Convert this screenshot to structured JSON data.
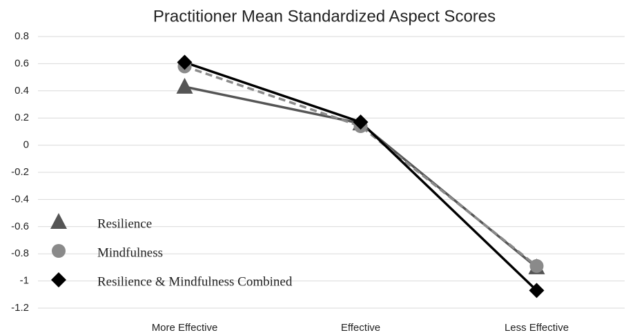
{
  "chart_data": {
    "type": "line",
    "title": "Practitioner Mean Standardized Aspect Scores",
    "categories": [
      "More Effective",
      "Effective",
      "Less Effective"
    ],
    "series": [
      {
        "name": "Resilience",
        "color": "#555555",
        "marker": "triangle",
        "line_style": "solid",
        "values": [
          0.43,
          0.16,
          -0.9
        ]
      },
      {
        "name": "Mindfulness",
        "color": "#8a8a8a",
        "marker": "circle",
        "line_style": "dashed",
        "values": [
          0.58,
          0.14,
          -0.89
        ]
      },
      {
        "name": "Resilience & Mindfulness Combined",
        "color": "#000000",
        "marker": "diamond",
        "line_style": "solid",
        "values": [
          0.61,
          0.17,
          -1.07
        ]
      }
    ],
    "ylim": [
      -1.2,
      0.8
    ],
    "yticks": [
      0.8,
      0.6,
      0.4,
      0.2,
      0,
      -0.2,
      -0.4,
      -0.6,
      -0.8,
      -1,
      -1.2
    ],
    "grid": true,
    "legend": "lower left"
  }
}
